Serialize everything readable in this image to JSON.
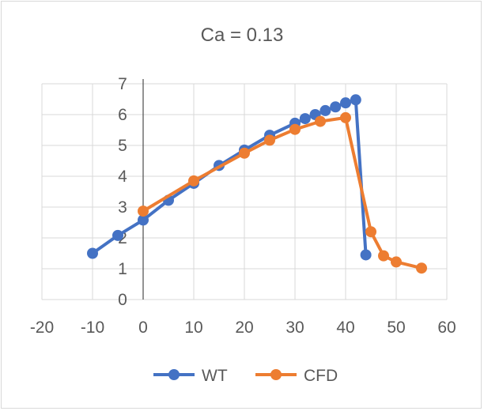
{
  "chart_data": {
    "type": "line",
    "title": "Ca = 0.13",
    "xlabel": "",
    "ylabel": "",
    "xlim": [
      -20,
      60
    ],
    "ylim": [
      0,
      7
    ],
    "x_ticks": [
      -20,
      -10,
      0,
      10,
      20,
      30,
      40,
      50,
      60
    ],
    "y_ticks": [
      0,
      1,
      2,
      3,
      4,
      5,
      6,
      7
    ],
    "grid": true,
    "legend_position": "bottom",
    "series": [
      {
        "name": "WT",
        "color": "#4472c4",
        "x": [
          -10,
          -5,
          0,
          5,
          10,
          15,
          20,
          25,
          30,
          32,
          34,
          36,
          38,
          40,
          42,
          44
        ],
        "y": [
          1.5,
          2.08,
          2.58,
          3.22,
          3.77,
          4.35,
          4.85,
          5.33,
          5.72,
          5.87,
          6.0,
          6.13,
          6.25,
          6.38,
          6.48,
          1.45
        ]
      },
      {
        "name": "CFD",
        "color": "#ed7d31",
        "x": [
          0,
          10,
          20,
          25,
          30,
          35,
          40,
          45,
          47.5,
          50,
          55
        ],
        "y": [
          2.87,
          3.85,
          4.75,
          5.17,
          5.52,
          5.78,
          5.9,
          2.2,
          1.42,
          1.22,
          1.02
        ]
      }
    ]
  }
}
